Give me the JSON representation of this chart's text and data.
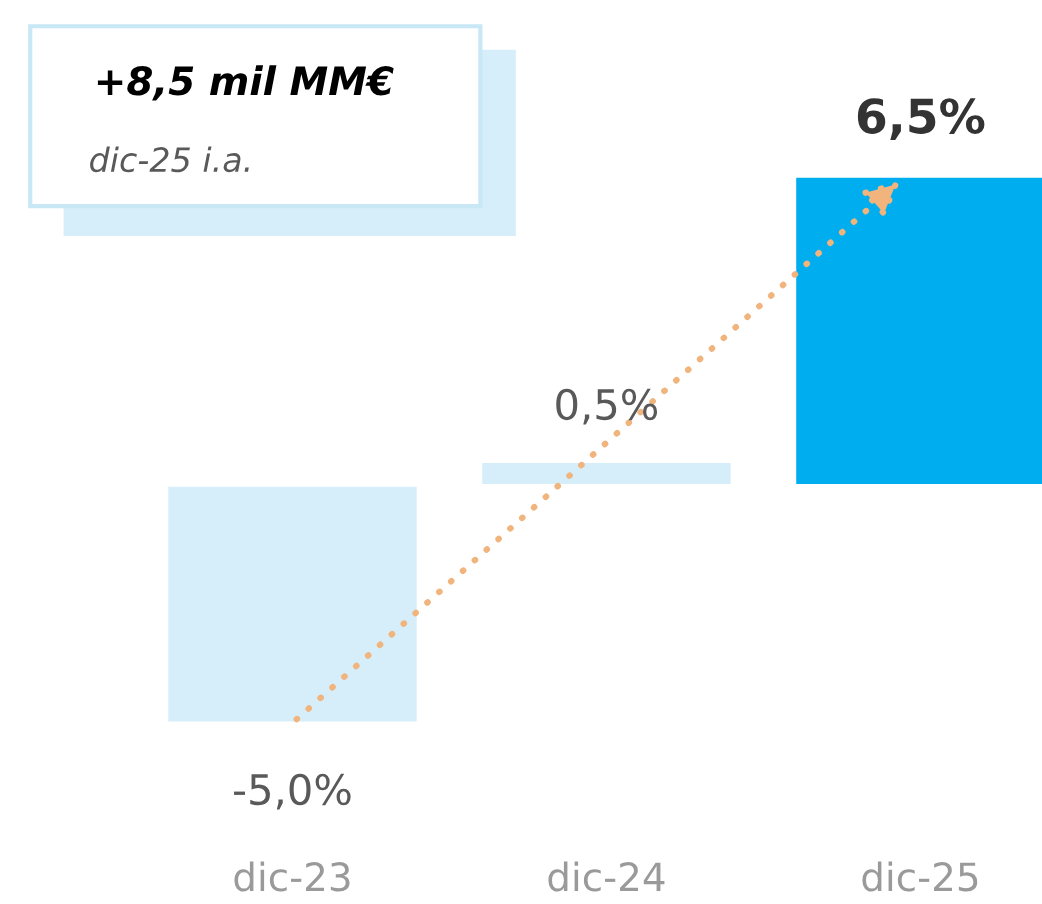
{
  "chart_data": {
    "type": "bar",
    "categories": [
      "dic-23",
      "dic-24",
      "dic-25"
    ],
    "values": [
      -5.0,
      0.5,
      6.5
    ],
    "colors": [
      "#d6eef9",
      "#d6eef9",
      "#00aeef"
    ],
    "value_labels": [
      "-5,0%",
      "0,5%",
      "6,5%"
    ],
    "annotations": [
      "+8,5 mil MM€",
      "dic-25 i.a."
    ]
  }
}
